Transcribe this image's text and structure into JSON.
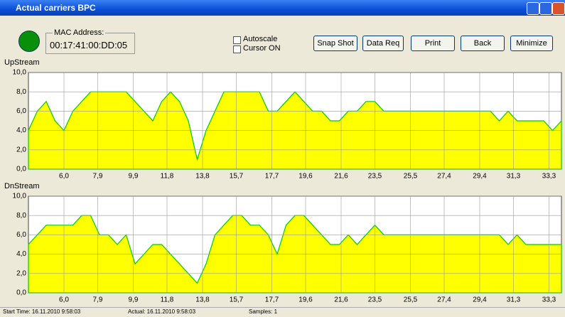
{
  "window": {
    "title": "Actual carriers BPC",
    "mac_label": "MAC Address:",
    "mac_value": "00:17:41:00:DD:05",
    "checkboxes": [
      "Autoscale",
      "Cursor ON"
    ],
    "buttons": [
      "Snap Shot",
      "Data Req",
      "Print",
      "Back",
      "Minimize"
    ],
    "status": [
      "Start Time: 16.11.2010 9:58:03",
      "Actual: 16.11.2010 9:58:03",
      "Samples: 1"
    ]
  },
  "chart_data": [
    {
      "type": "area",
      "title": "UpStream",
      "color": "#ffff00",
      "edge_color": "#00cc00",
      "grid": true,
      "x": [
        4,
        4.5,
        5,
        5.5,
        6,
        6.5,
        7,
        7.5,
        8,
        8.5,
        9,
        9.5,
        10,
        10.5,
        11,
        11.5,
        12,
        12.5,
        13,
        13.5,
        14,
        14.5,
        15,
        15.5,
        16,
        16.5,
        17,
        17.5,
        18,
        18.5,
        19,
        19.5,
        20,
        20.5,
        21,
        21.5,
        22,
        22.5,
        23,
        23.5,
        24,
        24.5,
        25,
        25.5,
        26,
        26.5,
        27,
        27.5,
        28,
        28.5,
        29,
        29.5,
        30,
        30.5,
        31,
        31.5,
        32,
        32.5,
        33,
        33.5,
        34
      ],
      "values": [
        4,
        6,
        7,
        5,
        4,
        6,
        7,
        8,
        8,
        8,
        8,
        8,
        7,
        6,
        5,
        7,
        8,
        7,
        5,
        1,
        4,
        6,
        8,
        8,
        8,
        8,
        8,
        6,
        6,
        7,
        8,
        7,
        6,
        6,
        5,
        5,
        6,
        6,
        7,
        7,
        6,
        6,
        6,
        6,
        6,
        6,
        6,
        6,
        6,
        6,
        6,
        6,
        6,
        5,
        6,
        5,
        5,
        5,
        5,
        4,
        5
      ],
      "xlim": [
        4.0,
        34.0
      ],
      "ylim": [
        0,
        10
      ],
      "xticks": [
        {
          "value": 6.0,
          "label": "6,0"
        },
        {
          "value": 7.9,
          "label": "7,9"
        },
        {
          "value": 9.9,
          "label": "9,9"
        },
        {
          "value": 11.8,
          "label": "11,8"
        },
        {
          "value": 13.8,
          "label": "13,8"
        },
        {
          "value": 15.7,
          "label": "15,7"
        },
        {
          "value": 17.7,
          "label": "17,7"
        },
        {
          "value": 19.6,
          "label": "19,6"
        },
        {
          "value": 21.6,
          "label": "21,6"
        },
        {
          "value": 23.5,
          "label": "23,5"
        },
        {
          "value": 25.5,
          "label": "25,5"
        },
        {
          "value": 27.4,
          "label": "27,4"
        },
        {
          "value": 29.4,
          "label": "29,4"
        },
        {
          "value": 31.3,
          "label": "31,3"
        },
        {
          "value": 33.3,
          "label": "33,3"
        }
      ],
      "yticks": [
        {
          "value": 0,
          "label": "0,0"
        },
        {
          "value": 2,
          "label": "2,0"
        },
        {
          "value": 4,
          "label": "4,0"
        },
        {
          "value": 6,
          "label": "6,0"
        },
        {
          "value": 8,
          "label": "8,0"
        },
        {
          "value": 10,
          "label": "10,0"
        }
      ]
    },
    {
      "type": "area",
      "title": "DnStream",
      "color": "#ffff00",
      "edge_color": "#00cc00",
      "grid": true,
      "x": [
        4,
        4.5,
        5,
        5.5,
        6,
        6.5,
        7,
        7.5,
        8,
        8.5,
        9,
        9.5,
        10,
        10.5,
        11,
        11.5,
        12,
        12.5,
        13,
        13.5,
        14,
        14.5,
        15,
        15.5,
        16,
        16.5,
        17,
        17.5,
        18,
        18.5,
        19,
        19.5,
        20,
        20.5,
        21,
        21.5,
        22,
        22.5,
        23,
        23.5,
        24,
        24.5,
        25,
        25.5,
        26,
        26.5,
        27,
        27.5,
        28,
        28.5,
        29,
        29.5,
        30,
        30.5,
        31,
        31.5,
        32,
        32.5,
        33,
        33.5,
        34
      ],
      "values": [
        5,
        6,
        7,
        7,
        7,
        7,
        8,
        8,
        6,
        6,
        5,
        6,
        3,
        4,
        5,
        5,
        4,
        3,
        2,
        1,
        3,
        6,
        7,
        8,
        8,
        7,
        7,
        6,
        4,
        7,
        8,
        8,
        7,
        6,
        5,
        5,
        6,
        5,
        6,
        7,
        6,
        6,
        6,
        6,
        6,
        6,
        6,
        6,
        6,
        6,
        6,
        6,
        6,
        6,
        5,
        6,
        5,
        5,
        5,
        5,
        5
      ],
      "xlim": [
        4.0,
        34.0
      ],
      "ylim": [
        0,
        10
      ],
      "xticks": [
        {
          "value": 6.0,
          "label": "6,0"
        },
        {
          "value": 7.9,
          "label": "7,9"
        },
        {
          "value": 9.9,
          "label": "9,9"
        },
        {
          "value": 11.8,
          "label": "11,8"
        },
        {
          "value": 13.8,
          "label": "13,8"
        },
        {
          "value": 15.7,
          "label": "15,7"
        },
        {
          "value": 17.7,
          "label": "17,7"
        },
        {
          "value": 19.6,
          "label": "19,6"
        },
        {
          "value": 21.6,
          "label": "21,6"
        },
        {
          "value": 23.5,
          "label": "23,5"
        },
        {
          "value": 25.5,
          "label": "25,5"
        },
        {
          "value": 27.4,
          "label": "27,4"
        },
        {
          "value": 29.4,
          "label": "29,4"
        },
        {
          "value": 31.3,
          "label": "31,3"
        },
        {
          "value": 33.3,
          "label": "33,3"
        }
      ],
      "yticks": [
        {
          "value": 0,
          "label": "0,0"
        },
        {
          "value": 2,
          "label": "2,0"
        },
        {
          "value": 4,
          "label": "4,0"
        },
        {
          "value": 6,
          "label": "6,0"
        },
        {
          "value": 8,
          "label": "8,0"
        },
        {
          "value": 10,
          "label": "10,0"
        }
      ]
    }
  ]
}
